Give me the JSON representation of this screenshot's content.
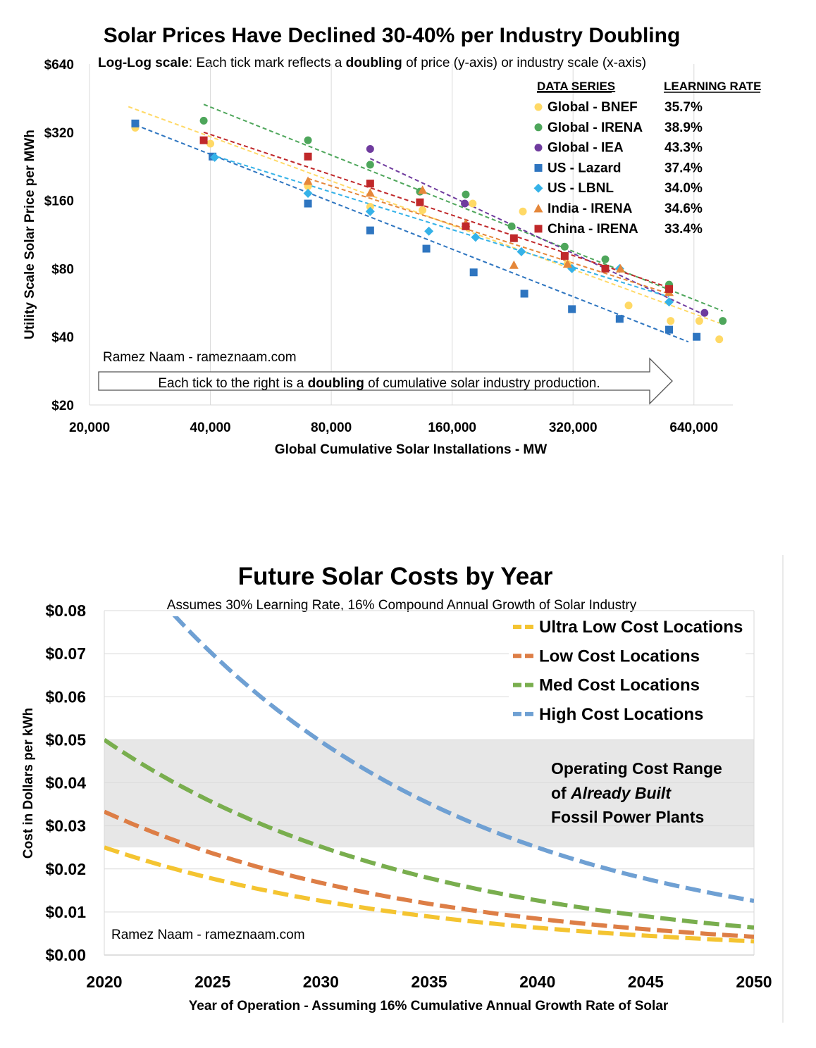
{
  "chart_data": [
    {
      "type": "scatter",
      "title": "Solar Prices Have Declined 30-40% per Industry Doubling",
      "subtitle": {
        "p1": "Log-Log scale",
        "p2": ": Each tick mark reflects a ",
        "p3": "doubling",
        "p4": " of price (y-axis) or industry scale (x-axis)"
      },
      "xlabel": "Global Cumulative Solar Installations - MW",
      "ylabel": "Utility Scale Solar Price per MWh",
      "xscale": "log2",
      "yscale": "log2",
      "xlim": [
        20000,
        800000
      ],
      "ylim": [
        20,
        640
      ],
      "x_ticks": [
        20000,
        40000,
        80000,
        160000,
        320000,
        640000
      ],
      "x_tick_labels": [
        "20,000",
        "40,000",
        "80,000",
        "160,000",
        "320,000",
        "640,000"
      ],
      "y_ticks": [
        20,
        40,
        80,
        160,
        320,
        640
      ],
      "y_tick_labels": [
        "$20",
        "$40",
        "$80",
        "$160",
        "$320",
        "$640"
      ],
      "grid": "vertical",
      "legend_position": "top-right",
      "legend_header_series": "DATA SERIES",
      "legend_header_rate": "LEARNING RATE",
      "credit": "Ramez Naam - rameznaam.com",
      "arrow_text": {
        "p1": "Each tick to the right is a ",
        "p2": "doubling",
        "p3": " of cumulative solar industry production."
      },
      "series": [
        {
          "name": "Global - BNEF",
          "learning_rate": "35.7%",
          "color": "#FFD966",
          "marker": "circle",
          "points": [
            [
              26000,
              335
            ],
            [
              40000,
              285
            ],
            [
              70000,
              185
            ],
            [
              100000,
              150
            ],
            [
              135000,
              145
            ],
            [
              180000,
              155
            ],
            [
              240000,
              143
            ],
            [
              310000,
              84
            ],
            [
              440000,
              55
            ],
            [
              560000,
              47
            ],
            [
              660000,
              47
            ],
            [
              740000,
              39
            ]
          ],
          "trend": [
            [
              25000,
              415
            ],
            [
              740000,
              46
            ]
          ]
        },
        {
          "name": "Global - IRENA",
          "learning_rate": "38.9%",
          "color": "#4EA65B",
          "marker": "circle",
          "points": [
            [
              38500,
              360
            ],
            [
              70000,
              295
            ],
            [
              100000,
              230
            ],
            [
              133000,
              175
            ],
            [
              173000,
              170
            ],
            [
              225000,
              123
            ],
            [
              305000,
              100
            ],
            [
              385000,
              88
            ],
            [
              555000,
              68
            ],
            [
              755000,
              47
            ]
          ],
          "trend": [
            [
              38500,
              425
            ],
            [
              755000,
              52
            ]
          ]
        },
        {
          "name": "Global - IEA",
          "learning_rate": "43.3%",
          "color": "#6F3B9E",
          "marker": "circle",
          "points": [
            [
              100000,
              270
            ],
            [
              172000,
              155
            ],
            [
              680000,
              51
            ]
          ],
          "trend": [
            [
              100000,
              245
            ],
            [
              680000,
              50
            ]
          ]
        },
        {
          "name": "US - Lazard",
          "learning_rate": "37.4%",
          "color": "#2E75C0",
          "marker": "square",
          "points": [
            [
              26000,
              350
            ],
            [
              40500,
              250
            ],
            [
              70000,
              155
            ],
            [
              100000,
              118
            ],
            [
              138000,
              98
            ],
            [
              181000,
              77
            ],
            [
              242000,
              62
            ],
            [
              318000,
              53
            ],
            [
              418000,
              48
            ],
            [
              555000,
              43
            ],
            [
              650000,
              40
            ]
          ],
          "trend": [
            [
              26000,
              345
            ],
            [
              620000,
              38
            ]
          ]
        },
        {
          "name": "US - LBNL",
          "learning_rate": "34.0%",
          "color": "#35B2E8",
          "marker": "diamond",
          "points": [
            [
              41000,
              248
            ],
            [
              70000,
              172
            ],
            [
              100000,
              143
            ],
            [
              140000,
              117
            ],
            [
              183000,
              110
            ],
            [
              238000,
              95
            ],
            [
              318000,
              80
            ],
            [
              418000,
              80
            ],
            [
              555000,
              57
            ]
          ],
          "trend": [
            [
              40000,
              255
            ],
            [
              555000,
              60
            ]
          ]
        },
        {
          "name": "India - IRENA",
          "learning_rate": "34.6%",
          "color": "#E5873A",
          "marker": "triangle",
          "points": [
            [
              70000,
              195
            ],
            [
              100000,
              173
            ],
            [
              135000,
              178
            ],
            [
              173000,
              127
            ],
            [
              228000,
              83
            ],
            [
              310000,
              84
            ],
            [
              420000,
              80
            ],
            [
              555000,
              63
            ]
          ],
          "trend": [
            [
              70000,
              200
            ],
            [
              555000,
              62
            ]
          ]
        },
        {
          "name": "China - IRENA",
          "learning_rate": "33.4%",
          "color": "#C0282A",
          "marker": "square",
          "points": [
            [
              38500,
              295
            ],
            [
              70000,
              250
            ],
            [
              100000,
              190
            ],
            [
              133000,
              157
            ],
            [
              173000,
              123
            ],
            [
              228000,
              109
            ],
            [
              305000,
              91
            ],
            [
              385000,
              80
            ],
            [
              555000,
              65
            ]
          ],
          "trend": [
            [
              38500,
              320
            ],
            [
              555000,
              66
            ]
          ]
        }
      ]
    },
    {
      "type": "line",
      "title": "Future Solar Costs by Year",
      "subtitle": "Assumes 30% Learning Rate, 16% Compound Annual Growth of Solar Industry",
      "xlabel": "Year of Operation - Assuming 16% Cumulative Annual Growth Rate of Solar",
      "ylabel": "Cost in Dollars per kWh",
      "xlim": [
        2020,
        2050
      ],
      "ylim": [
        0,
        0.08
      ],
      "x_ticks": [
        2020,
        2025,
        2030,
        2035,
        2040,
        2045,
        2050
      ],
      "x_tick_labels": [
        "2020",
        "2025",
        "2030",
        "2035",
        "2040",
        "2045",
        "2050"
      ],
      "y_ticks": [
        0,
        0.01,
        0.02,
        0.03,
        0.04,
        0.05,
        0.06,
        0.07,
        0.08
      ],
      "y_tick_labels": [
        "$0.00",
        "$0.01",
        "$0.02",
        "$0.03",
        "$0.04",
        "$0.05",
        "$0.06",
        "$0.07",
        "$0.08"
      ],
      "grid": "horizontal",
      "legend_position": "top-right",
      "credit": "Ramez Naam - rameznaam.com",
      "shaded_band": {
        "y_range": [
          0.025,
          0.05
        ],
        "color": "#E7E7E7",
        "label_lines": [
          [
            {
              "t": "Operating Cost Range",
              "i": false
            }
          ],
          [
            {
              "t": "of ",
              "i": false
            },
            {
              "t": "Already Built",
              "i": true
            }
          ],
          [
            {
              "t": "Fossil Power Plants",
              "i": false
            }
          ]
        ]
      },
      "series": [
        {
          "name": "Ultra Low Cost Locations",
          "color": "#F4C431",
          "start_value": 0.025,
          "annual_decline": 0.0663
        },
        {
          "name": "Low Cost Locations",
          "color": "#DD7E46",
          "start_value": 0.0333,
          "annual_decline": 0.0663
        },
        {
          "name": "Med Cost Locations",
          "color": "#79AE4E",
          "start_value": 0.05,
          "annual_decline": 0.0663
        },
        {
          "name": "High Cost Locations",
          "color": "#6FA0D3",
          "start_value": 0.0985,
          "annual_decline": 0.0663
        }
      ]
    }
  ]
}
